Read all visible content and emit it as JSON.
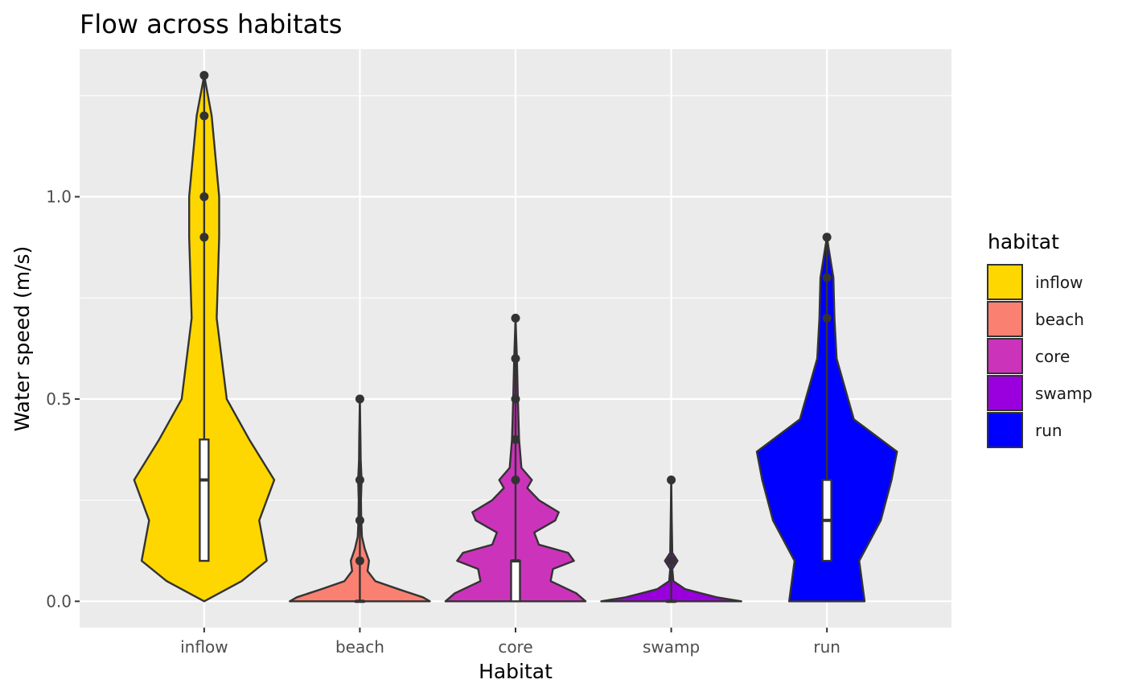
{
  "chart_data": {
    "type": "violin",
    "title": "Flow across habitats",
    "xlabel": "Habitat",
    "ylabel": "Water speed (m/s)",
    "ylim": [
      -0.065,
      1.365
    ],
    "yticks": [
      0.0,
      0.5,
      1.0
    ],
    "ytick_labels": [
      "0.0",
      "0.5",
      "1.0"
    ],
    "grid": true,
    "legend": {
      "title": "habitat",
      "placement": "right",
      "entries": [
        "inflow",
        "beach",
        "core",
        "swamp",
        "run"
      ]
    },
    "categories": [
      "inflow",
      "beach",
      "core",
      "swamp",
      "run"
    ],
    "series": [
      {
        "category": "inflow",
        "color": "#FFD700",
        "box": {
          "q1": 0.1,
          "median": 0.3,
          "q3": 0.4
        },
        "outliers": [
          0.9,
          1.0,
          1.2,
          1.3
        ],
        "density": [
          [
            0.0,
            0.0
          ],
          [
            0.05,
            0.015
          ],
          [
            0.1,
            0.025
          ],
          [
            0.2,
            0.022
          ],
          [
            0.3,
            0.028
          ],
          [
            0.4,
            0.018
          ],
          [
            0.5,
            0.009
          ],
          [
            0.7,
            0.005
          ],
          [
            0.9,
            0.006
          ],
          [
            1.0,
            0.006
          ],
          [
            1.2,
            0.003
          ],
          [
            1.3,
            0.0
          ]
        ]
      },
      {
        "category": "beach",
        "color": "#FA8072",
        "box": {
          "q1": 0.0,
          "median": 0.0,
          "q3": 0.0
        },
        "outliers": [
          0.1,
          0.2,
          0.3,
          0.5
        ],
        "density": [
          [
            0.0,
            1.0
          ],
          [
            0.01,
            0.9
          ],
          [
            0.03,
            0.55
          ],
          [
            0.05,
            0.22
          ],
          [
            0.075,
            0.11
          ],
          [
            0.1,
            0.13
          ],
          [
            0.13,
            0.07
          ],
          [
            0.16,
            0.03
          ],
          [
            0.2,
            0.02
          ],
          [
            0.25,
            0.016
          ],
          [
            0.3,
            0.025
          ],
          [
            0.35,
            0.012
          ],
          [
            0.4,
            0.009
          ],
          [
            0.5,
            0.0
          ]
        ]
      },
      {
        "category": "core",
        "color": "#CC33BB",
        "box": {
          "q1": 0.0,
          "median": 0.1,
          "q3": 0.1
        },
        "outliers": [
          0.3,
          0.4,
          0.5,
          0.6,
          0.7
        ],
        "density": [
          [
            0.0,
            0.6
          ],
          [
            0.02,
            0.52
          ],
          [
            0.05,
            0.3
          ],
          [
            0.08,
            0.32
          ],
          [
            0.1,
            0.5
          ],
          [
            0.12,
            0.45
          ],
          [
            0.14,
            0.2
          ],
          [
            0.17,
            0.16
          ],
          [
            0.2,
            0.34
          ],
          [
            0.22,
            0.37
          ],
          [
            0.25,
            0.2
          ],
          [
            0.28,
            0.1
          ],
          [
            0.3,
            0.14
          ],
          [
            0.33,
            0.05
          ],
          [
            0.4,
            0.03
          ],
          [
            0.5,
            0.02
          ],
          [
            0.6,
            0.012
          ],
          [
            0.7,
            0.0
          ]
        ]
      },
      {
        "category": "swamp",
        "color": "#9900DD",
        "box": {
          "q1": 0.0,
          "median": 0.0,
          "q3": 0.0
        },
        "outliers": [
          0.1,
          0.3
        ],
        "density": [
          [
            0.0,
            2.0
          ],
          [
            0.01,
            1.3
          ],
          [
            0.02,
            0.85
          ],
          [
            0.03,
            0.4
          ],
          [
            0.05,
            0.06
          ],
          [
            0.08,
            0.03
          ],
          [
            0.1,
            0.18
          ],
          [
            0.12,
            0.03
          ],
          [
            0.2,
            0.015
          ],
          [
            0.3,
            0.0
          ]
        ]
      },
      {
        "category": "run",
        "color": "#0000FF",
        "box": {
          "q1": 0.1,
          "median": 0.2,
          "q3": 0.3
        },
        "outliers": [
          0.7,
          0.8,
          0.9
        ],
        "density": [
          [
            0.0,
            0.07
          ],
          [
            0.1,
            0.06
          ],
          [
            0.2,
            0.1
          ],
          [
            0.3,
            0.12
          ],
          [
            0.37,
            0.13
          ],
          [
            0.45,
            0.05
          ],
          [
            0.6,
            0.018
          ],
          [
            0.7,
            0.014
          ],
          [
            0.8,
            0.012
          ],
          [
            0.9,
            0.0
          ]
        ]
      }
    ]
  }
}
